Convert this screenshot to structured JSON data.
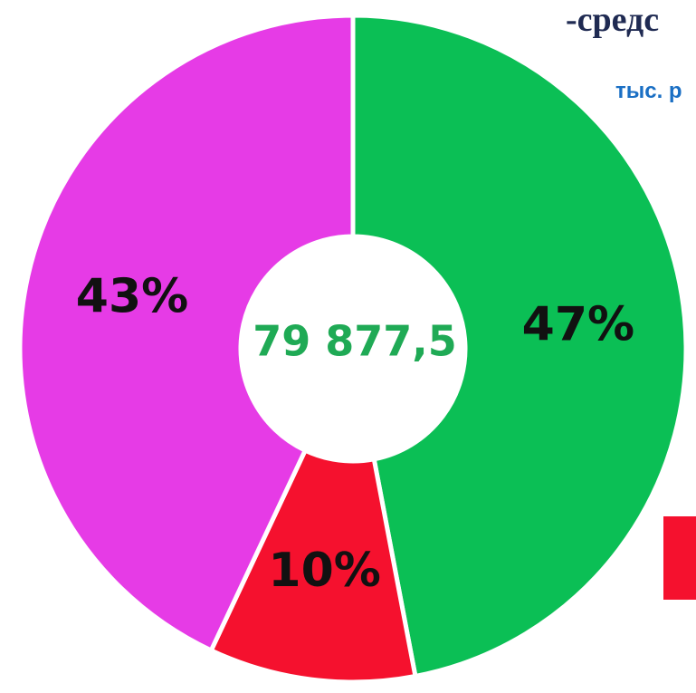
{
  "chart_data": {
    "type": "pie",
    "title": "-средс",
    "subtitle": "тыс. р",
    "center_label": "79 877,5",
    "values": [
      47,
      10,
      43
    ],
    "value_labels": [
      "47%",
      "10%",
      "43%"
    ],
    "colors": [
      "#0bbf55",
      "#f5112e",
      "#e63be6"
    ],
    "donut": true
  }
}
